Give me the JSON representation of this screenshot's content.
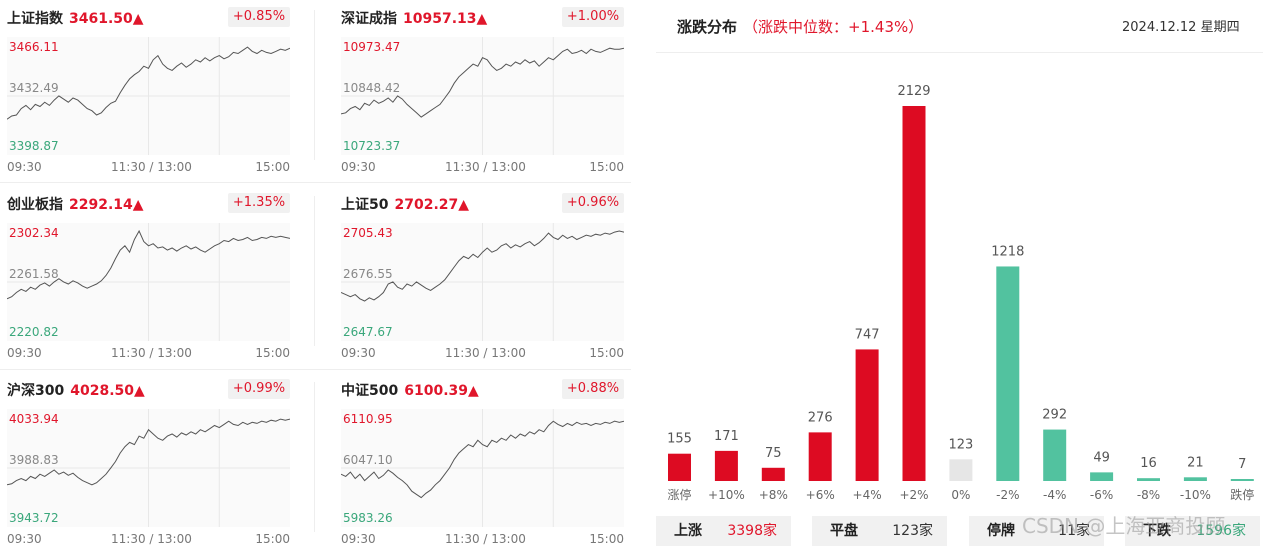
{
  "colors": {
    "up": "#e0162b",
    "down": "#3aa77b",
    "flat": "#e6e6e6",
    "bar_up": "#dd0b22",
    "bar_down": "#52c29f"
  },
  "indices": [
    {
      "name": "上证指数",
      "value": "3461.50▲",
      "change": "+0.85%",
      "high": "3466.11",
      "mid": "3432.49",
      "low": "3398.87",
      "series": [
        0.3,
        0.33,
        0.34,
        0.4,
        0.43,
        0.39,
        0.44,
        0.42,
        0.46,
        0.43,
        0.48,
        0.52,
        0.49,
        0.46,
        0.5,
        0.48,
        0.44,
        0.4,
        0.38,
        0.34,
        0.36,
        0.41,
        0.45,
        0.47,
        0.55,
        0.62,
        0.68,
        0.72,
        0.75,
        0.8,
        0.78,
        0.86,
        0.9,
        0.82,
        0.78,
        0.76,
        0.8,
        0.83,
        0.79,
        0.82,
        0.86,
        0.84,
        0.88,
        0.85,
        0.88,
        0.9,
        0.87,
        0.89,
        0.93,
        0.92,
        0.95,
        0.98,
        0.94,
        0.92,
        0.95,
        0.93,
        0.92,
        0.94,
        0.96,
        0.95,
        0.97
      ]
    },
    {
      "name": "深证成指",
      "value": "10957.13▲",
      "change": "+1.00%",
      "high": "10973.47",
      "mid": "10848.42",
      "low": "10723.37",
      "series": [
        0.35,
        0.36,
        0.4,
        0.42,
        0.39,
        0.45,
        0.43,
        0.48,
        0.45,
        0.47,
        0.5,
        0.46,
        0.52,
        0.49,
        0.44,
        0.4,
        0.36,
        0.32,
        0.35,
        0.38,
        0.41,
        0.44,
        0.5,
        0.56,
        0.64,
        0.7,
        0.74,
        0.78,
        0.82,
        0.8,
        0.88,
        0.86,
        0.8,
        0.76,
        0.78,
        0.82,
        0.8,
        0.84,
        0.82,
        0.86,
        0.83,
        0.85,
        0.8,
        0.84,
        0.88,
        0.86,
        0.9,
        0.94,
        0.96,
        0.92,
        0.93,
        0.95,
        0.92,
        0.96,
        0.94,
        0.93,
        0.95,
        0.97,
        0.96,
        0.96,
        0.97
      ]
    },
    {
      "name": "创业板指",
      "value": "2292.14▲",
      "change": "+1.35%",
      "high": "2302.34",
      "mid": "2261.58",
      "low": "2220.82",
      "series": [
        0.36,
        0.38,
        0.42,
        0.45,
        0.43,
        0.47,
        0.45,
        0.49,
        0.51,
        0.48,
        0.52,
        0.55,
        0.52,
        0.5,
        0.53,
        0.51,
        0.48,
        0.46,
        0.48,
        0.5,
        0.53,
        0.58,
        0.65,
        0.74,
        0.82,
        0.86,
        0.8,
        0.92,
        1.0,
        0.9,
        0.86,
        0.88,
        0.84,
        0.85,
        0.82,
        0.84,
        0.81,
        0.84,
        0.86,
        0.83,
        0.85,
        0.82,
        0.8,
        0.83,
        0.86,
        0.88,
        0.91,
        0.9,
        0.93,
        0.91,
        0.92,
        0.94,
        0.91,
        0.92,
        0.94,
        0.93,
        0.95,
        0.94,
        0.95,
        0.94,
        0.93
      ]
    },
    {
      "name": "上证50",
      "value": "2702.27▲",
      "change": "+0.96%",
      "high": "2705.43",
      "mid": "2676.55",
      "low": "2647.67",
      "series": [
        0.42,
        0.4,
        0.38,
        0.4,
        0.36,
        0.34,
        0.37,
        0.35,
        0.38,
        0.42,
        0.5,
        0.52,
        0.47,
        0.45,
        0.5,
        0.48,
        0.52,
        0.49,
        0.46,
        0.44,
        0.47,
        0.5,
        0.54,
        0.6,
        0.66,
        0.72,
        0.76,
        0.74,
        0.78,
        0.75,
        0.8,
        0.84,
        0.8,
        0.82,
        0.86,
        0.88,
        0.84,
        0.87,
        0.85,
        0.88,
        0.9,
        0.86,
        0.89,
        0.93,
        0.98,
        0.94,
        0.92,
        0.96,
        0.93,
        0.95,
        0.92,
        0.94,
        0.96,
        0.95,
        0.97,
        0.96,
        0.98,
        0.97,
        0.99,
        1.0,
        0.99
      ]
    },
    {
      "name": "沪深300",
      "value": "4028.50▲",
      "change": "+0.99%",
      "high": "4033.94",
      "mid": "3988.83",
      "low": "3943.72",
      "series": [
        0.36,
        0.37,
        0.4,
        0.42,
        0.4,
        0.44,
        0.42,
        0.46,
        0.44,
        0.47,
        0.5,
        0.46,
        0.48,
        0.45,
        0.47,
        0.43,
        0.4,
        0.38,
        0.36,
        0.38,
        0.42,
        0.46,
        0.52,
        0.58,
        0.66,
        0.72,
        0.76,
        0.74,
        0.82,
        0.8,
        0.88,
        0.84,
        0.8,
        0.78,
        0.82,
        0.84,
        0.81,
        0.85,
        0.83,
        0.86,
        0.84,
        0.88,
        0.86,
        0.89,
        0.92,
        0.9,
        0.93,
        0.96,
        0.93,
        0.92,
        0.95,
        0.93,
        0.95,
        0.94,
        0.96,
        0.95,
        0.97,
        0.96,
        0.98,
        0.97,
        0.98
      ]
    },
    {
      "name": "中证500",
      "value": "6100.39▲",
      "change": "+0.88%",
      "high": "6110.95",
      "mid": "6047.10",
      "low": "5983.26",
      "series": [
        0.46,
        0.44,
        0.48,
        0.42,
        0.46,
        0.4,
        0.44,
        0.48,
        0.42,
        0.45,
        0.5,
        0.47,
        0.43,
        0.4,
        0.36,
        0.3,
        0.27,
        0.24,
        0.28,
        0.31,
        0.36,
        0.4,
        0.46,
        0.52,
        0.6,
        0.66,
        0.7,
        0.74,
        0.72,
        0.78,
        0.74,
        0.72,
        0.78,
        0.76,
        0.8,
        0.78,
        0.83,
        0.8,
        0.84,
        0.82,
        0.86,
        0.84,
        0.88,
        0.86,
        0.92,
        0.96,
        0.93,
        0.91,
        0.94,
        0.92,
        0.95,
        0.93,
        0.94,
        0.92,
        0.94,
        0.93,
        0.95,
        0.94,
        0.96,
        0.95,
        0.96
      ]
    }
  ],
  "time_axis": {
    "start": "09:30",
    "mid": "11:30 / 13:00",
    "end": "15:00"
  },
  "distribution": {
    "title": "涨跌分布",
    "subtitle": "（涨跌中位数：+1.43%）",
    "date": "2024.12.12 星期四",
    "chart_data": {
      "type": "bar",
      "categories": [
        "涨停",
        "+10%",
        "+8%",
        "+6%",
        "+4%",
        "+2%",
        "0%",
        "-2%",
        "-4%",
        "-6%",
        "-8%",
        "-10%",
        "跌停"
      ],
      "values": [
        155,
        171,
        75,
        276,
        747,
        2129,
        123,
        1218,
        292,
        49,
        16,
        21,
        7
      ],
      "groups": [
        "up",
        "up",
        "up",
        "up",
        "up",
        "up",
        "flat",
        "down",
        "down",
        "down",
        "down",
        "down",
        "down"
      ]
    },
    "summary": [
      {
        "label": "上涨",
        "value": "3398家",
        "tone": "up"
      },
      {
        "label": "平盘",
        "value": "123家",
        "tone": "flat"
      },
      {
        "label": "停牌",
        "value": "11家",
        "tone": "flat"
      },
      {
        "label": "下跌",
        "value": "1596家",
        "tone": "down"
      }
    ]
  },
  "watermark": "CSDN @上海亚商投顾"
}
